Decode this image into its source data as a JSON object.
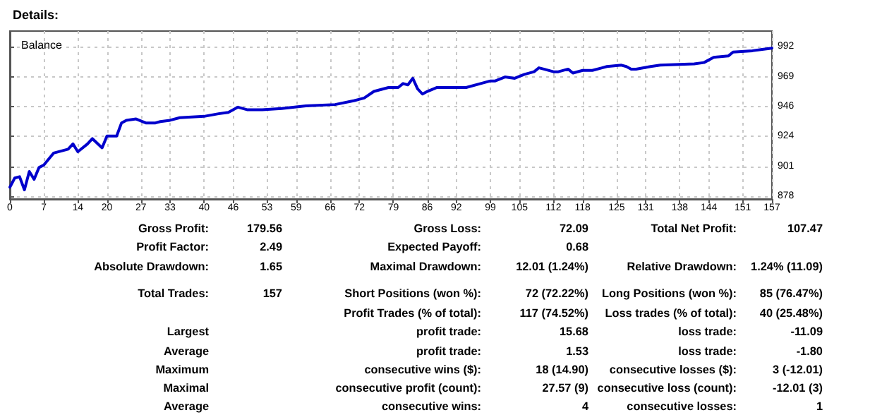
{
  "chart_data": [
    {
      "type": "line",
      "title": "Details:",
      "subtitle": "Balance",
      "x": [
        0,
        1,
        2,
        3,
        4,
        5,
        6,
        7,
        9,
        12,
        13,
        14,
        16,
        17,
        19,
        20,
        22,
        23,
        24,
        26,
        28,
        30,
        31,
        33,
        35,
        40,
        43,
        45,
        47,
        49,
        52,
        56,
        61,
        67,
        71,
        73,
        75,
        78,
        80,
        81,
        82,
        83,
        84,
        85,
        86,
        88,
        92,
        94,
        97,
        99,
        100,
        102,
        104,
        106,
        108,
        109,
        110,
        112,
        113,
        115,
        116,
        118,
        120,
        122,
        123,
        126,
        127,
        128,
        129,
        132,
        134,
        141,
        143,
        145,
        148,
        149,
        153,
        155,
        157
      ],
      "series": [
        {
          "color": "#0000cc",
          "values": [
            885,
            892,
            893,
            883,
            897,
            891,
            900,
            902,
            911,
            914,
            918,
            912,
            918,
            922,
            915,
            924,
            924,
            934,
            936,
            937,
            934,
            934,
            935,
            936,
            938,
            939,
            941,
            942,
            946,
            944,
            944,
            945,
            947,
            948,
            951,
            953,
            958,
            961,
            961,
            964,
            963,
            968,
            960,
            956,
            958,
            961,
            961,
            961,
            964,
            966,
            966,
            969,
            968,
            971,
            973,
            976,
            975,
            973,
            973,
            975,
            972,
            974,
            974,
            976,
            977,
            978,
            977,
            975,
            975,
            977,
            978,
            979,
            980,
            984,
            985,
            988,
            989,
            990,
            991
          ]
        }
      ],
      "xlim": [
        0,
        157
      ],
      "xticks": [
        0,
        7,
        14,
        20,
        27,
        33,
        40,
        46,
        53,
        59,
        66,
        72,
        79,
        86,
        92,
        99,
        105,
        112,
        118,
        125,
        131,
        138,
        144,
        151,
        157
      ],
      "ylim": [
        876,
        1004
      ],
      "yticks": [
        {
          "value": 878,
          "label": "878"
        },
        {
          "value": 900.8,
          "label": "901"
        },
        {
          "value": 923.6,
          "label": "924"
        },
        {
          "value": 946.4,
          "label": "946"
        },
        {
          "value": 969.2,
          "label": "969"
        },
        {
          "value": 992,
          "label": "992"
        }
      ],
      "grid": true,
      "marker": "none",
      "line_style": "solid"
    },
    {
      "type": "other",
      "annotations": [
        "Gross Profit:",
        "179.56",
        "Gross Loss:",
        "72.09",
        "Total Net Profit:",
        "107.47",
        "Profit Factor:",
        "2.49",
        "Expected Payoff:",
        "0.68",
        "Absolute Drawdown:",
        "1.65",
        "Maximal Drawdown:",
        "12.01 (1.24%)",
        "Relative Drawdown:",
        "1.24% (11.09)",
        "Total Trades:",
        "157",
        "Short Positions (won %):",
        "72 (72.22%)",
        "Long Positions (won %):",
        "85 (76.47%)",
        "Profit Trades (% of total):",
        "117 (74.52%)",
        "Loss trades (% of total):",
        "40 (25.48%)",
        "Largest",
        "profit trade:",
        "15.68",
        "loss trade:",
        "-11.09",
        "Average",
        "profit trade:",
        "1.53",
        "loss trade:",
        "-1.80",
        "Maximum",
        "consecutive wins ($):",
        "18 (14.90)",
        "consecutive losses ($):",
        "3 (-12.01)",
        "Maximal",
        "consecutive profit (count):",
        "27.57 (9)",
        "consecutive loss (count):",
        "-12.01 (3)",
        "Average",
        "consecutive wins:",
        "4",
        "consecutive losses:",
        "1"
      ]
    }
  ]
}
